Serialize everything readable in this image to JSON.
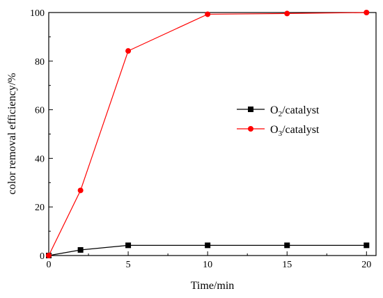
{
  "chart_data": {
    "type": "line",
    "title": "",
    "xlabel": "Time/min",
    "ylabel": "color removal efficiency/%",
    "xlim": [
      0,
      20.6
    ],
    "ylim": [
      0,
      100
    ],
    "x_ticks": [
      0,
      5,
      10,
      15,
      20
    ],
    "y_ticks": [
      0,
      20,
      40,
      60,
      80,
      100
    ],
    "x": [
      0,
      2,
      5,
      10,
      15,
      20
    ],
    "grid": false,
    "legend_position": "center-right",
    "series": [
      {
        "legend_main": "O",
        "legend_sub": "2",
        "legend_suffix": "/catalyst",
        "color": "#000000",
        "marker": "square",
        "values": [
          0,
          2.3,
          4.2,
          4.2,
          4.2,
          4.2
        ]
      },
      {
        "legend_main": "O",
        "legend_sub": "3",
        "legend_suffix": "/catalyst",
        "color": "#ff0000",
        "marker": "circle",
        "values": [
          0,
          26.8,
          84.2,
          99.3,
          99.6,
          100
        ]
      }
    ]
  }
}
